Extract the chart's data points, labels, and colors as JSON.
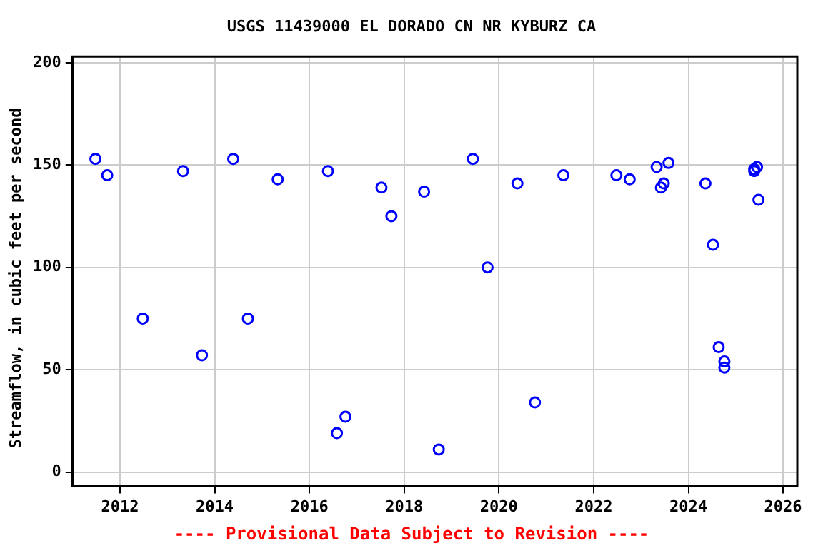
{
  "chart_data": {
    "type": "scatter",
    "title": "USGS 11439000 EL DORADO CN NR KYBURZ CA",
    "ylabel": "Streamflow, in cubic feet per second",
    "x": [
      2011.48,
      2011.73,
      2012.48,
      2013.33,
      2013.73,
      2014.39,
      2014.7,
      2015.33,
      2016.39,
      2016.58,
      2016.76,
      2017.52,
      2017.73,
      2018.42,
      2018.73,
      2019.45,
      2019.76,
      2020.39,
      2020.76,
      2021.36,
      2022.48,
      2022.76,
      2023.33,
      2023.42,
      2023.48,
      2023.58,
      2024.36,
      2024.52,
      2024.64,
      2024.76,
      2024.76,
      2025.39,
      2025.45,
      2025.39,
      2025.48
    ],
    "series": [
      {
        "color": "#0000ff",
        "values": [
          153,
          145,
          75,
          147,
          57,
          153,
          75,
          143,
          147,
          19,
          27,
          139,
          125,
          137,
          11,
          153,
          100,
          141,
          34,
          145,
          145,
          143,
          149,
          139,
          141,
          151,
          141,
          111,
          61,
          54,
          51,
          148,
          149,
          147,
          133
        ]
      }
    ],
    "xlim": [
      2011,
      2026.3
    ],
    "xticks": [
      2012,
      2014,
      2016,
      2018,
      2020,
      2022,
      2024,
      2026
    ],
    "ylim": [
      -7,
      203
    ],
    "yticks": [
      0,
      50,
      100,
      150,
      200
    ],
    "grid": true,
    "legend": false,
    "marker": "circle",
    "annotations": [
      "---- Provisional Data Subject to Revision ----"
    ]
  }
}
